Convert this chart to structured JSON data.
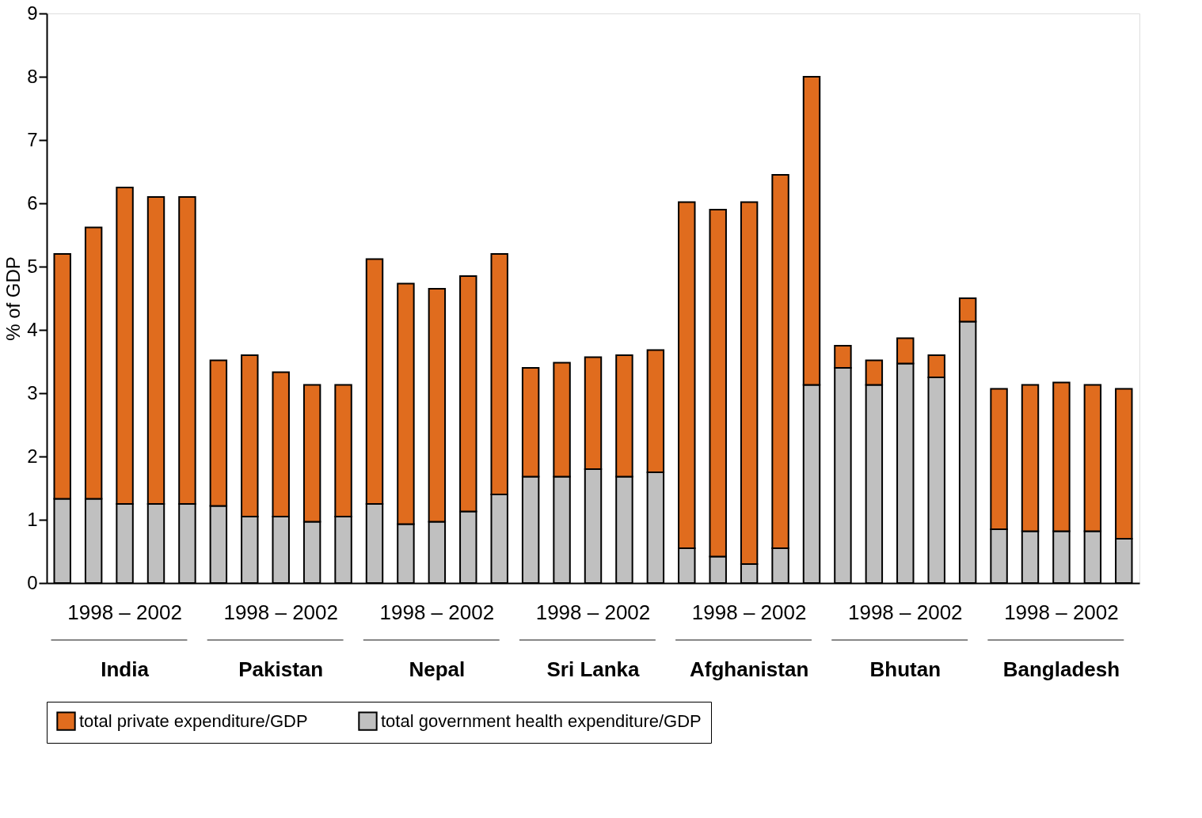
{
  "chart_data": {
    "type": "bar",
    "stacked": true,
    "ylabel": "% of GDP",
    "ylim": [
      0,
      9
    ],
    "yticks": [
      0,
      1,
      2,
      3,
      4,
      5,
      6,
      7,
      8,
      9
    ],
    "grid": false,
    "legend": "bottom",
    "categories": [
      null,
      null,
      null,
      null,
      null,
      null,
      null,
      null,
      null,
      null,
      null,
      null,
      null,
      null,
      null,
      null,
      null,
      null,
      null,
      null,
      null,
      null,
      null,
      null,
      null,
      null,
      null,
      null,
      null,
      null,
      null,
      null,
      null,
      null,
      null
    ],
    "series": [
      {
        "name": "total government health expenditure/GDP",
        "color": "#c0c0c0",
        "values": [
          1.33,
          1.33,
          1.25,
          1.25,
          1.25,
          1.22,
          1.05,
          1.05,
          0.97,
          1.05,
          1.25,
          0.93,
          0.97,
          1.13,
          1.4,
          1.68,
          1.68,
          1.8,
          1.68,
          1.75,
          0.55,
          0.42,
          0.3,
          0.55,
          3.13,
          3.4,
          3.13,
          3.47,
          3.25,
          4.13,
          0.85,
          0.82,
          0.82,
          0.82,
          0.7
        ]
      },
      {
        "name": "total private expenditure/GDP",
        "color": "#e06c1e",
        "values": [
          3.87,
          4.29,
          5.0,
          4.85,
          4.85,
          2.3,
          2.55,
          2.28,
          2.16,
          2.08,
          3.87,
          3.8,
          3.68,
          3.72,
          3.8,
          1.72,
          1.8,
          1.77,
          1.92,
          1.93,
          5.47,
          5.48,
          5.72,
          5.9,
          4.87,
          0.35,
          0.39,
          0.4,
          0.35,
          0.37,
          2.22,
          2.31,
          2.35,
          2.31,
          2.37
        ]
      }
    ],
    "annotations": [
      "1998 – 2002",
      "1998 – 2002",
      "1998 – 2002",
      "1998 – 2002",
      "1998 – 2002",
      "1998 – 2002",
      "1998 – 2002",
      "India",
      "Pakistan",
      "Nepal",
      "Sri Lanka",
      "Afghanistan",
      "Bhutan",
      "Bangladesh"
    ]
  }
}
